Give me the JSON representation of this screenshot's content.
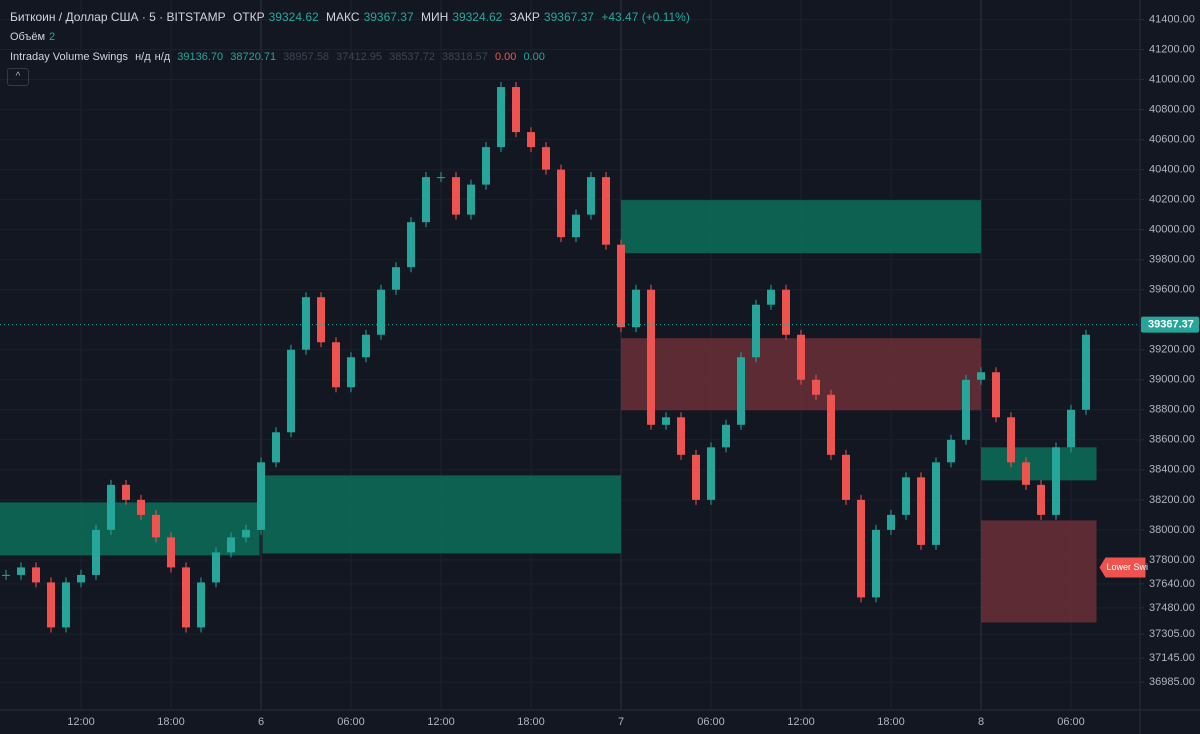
{
  "header": {
    "symbol": "Биткоин / Доллар США · 5 · BITSTAMP",
    "open_label": "ОТКР",
    "open": "39324.62",
    "high_label": "МАКС",
    "high": "39367.37",
    "low_label": "МИН",
    "low": "39324.62",
    "close_label": "ЗАКР",
    "close": "39367.37",
    "change": "+43.47 (+0.11%)",
    "volume_label": "Объём",
    "volume": "2",
    "indicator": "Intraday Volume Swings",
    "ind_na1": "н/д",
    "ind_na2": "н/д",
    "ind_values": [
      "39136.70",
      "38720.71",
      "38957.58",
      "37412.95",
      "38537.72",
      "38318.57"
    ],
    "ind_red": "0.00",
    "ind_green": "0.00"
  },
  "chart": {
    "type": "candlestick",
    "xlim": [
      6.6,
      82.6
    ],
    "ylim": [
      36800,
      41530
    ],
    "yticks": [
      {
        "value": 41400,
        "label": "41400.00"
      },
      {
        "value": 41200,
        "label": "41200.00"
      },
      {
        "value": 41000,
        "label": "41000.00"
      },
      {
        "value": 40800,
        "label": "40800.00"
      },
      {
        "value": 40600,
        "label": "40600.00"
      },
      {
        "value": 40400,
        "label": "40400.00"
      },
      {
        "value": 40200,
        "label": "40200.00"
      },
      {
        "value": 40000,
        "label": "40000.00"
      },
      {
        "value": 39800,
        "label": "39800.00"
      },
      {
        "value": 39600,
        "label": "39600.00"
      },
      {
        "value": 39200,
        "label": "39200.00"
      },
      {
        "value": 39000,
        "label": "39000.00"
      },
      {
        "value": 38800,
        "label": "38800.00"
      },
      {
        "value": 38600,
        "label": "38600.00"
      },
      {
        "value": 38400,
        "label": "38400.00"
      },
      {
        "value": 38200,
        "label": "38200.00"
      },
      {
        "value": 38000,
        "label": "38000.00"
      },
      {
        "value": 37800,
        "label": "37800.00"
      },
      {
        "value": 37640,
        "label": "37640.00"
      },
      {
        "value": 37480,
        "label": "37480.00"
      },
      {
        "value": 37305,
        "label": "37305.00"
      },
      {
        "value": 37145,
        "label": "37145.00"
      },
      {
        "value": 36985,
        "label": "36985.00"
      }
    ],
    "xticks": [
      {
        "value": 12,
        "label": "12:00"
      },
      {
        "value": 18,
        "label": "18:00"
      },
      {
        "value": 24,
        "label": "6"
      },
      {
        "value": 30,
        "label": "06:00"
      },
      {
        "value": 36,
        "label": "12:00"
      },
      {
        "value": 42,
        "label": "18:00"
      },
      {
        "value": 48,
        "label": "7"
      },
      {
        "value": 54,
        "label": "06:00"
      },
      {
        "value": 60,
        "label": "12:00"
      },
      {
        "value": 66,
        "label": "18:00"
      },
      {
        "value": 72,
        "label": "8"
      },
      {
        "value": 78,
        "label": "06:00"
      }
    ],
    "x": [
      7,
      8,
      9,
      10,
      11,
      12,
      13,
      14,
      15,
      16,
      17,
      18,
      19,
      20,
      21,
      22,
      23,
      24,
      25,
      26,
      27,
      28,
      29,
      30,
      31,
      32,
      33,
      34,
      35,
      36,
      37,
      38,
      39,
      40,
      41,
      42,
      43,
      44,
      45,
      46,
      47,
      48,
      49,
      50,
      51,
      52,
      53,
      54,
      55,
      56,
      57,
      58,
      59,
      60,
      61,
      62,
      63,
      64,
      65,
      66,
      67,
      68,
      69,
      70,
      71,
      72,
      73,
      74,
      75,
      76,
      77,
      78,
      79
    ],
    "close": [
      37700,
      37750,
      37650,
      37350,
      37650,
      37700,
      38000,
      38300,
      38200,
      38100,
      37950,
      37750,
      37350,
      37650,
      37850,
      37950,
      38000,
      38450,
      38650,
      39200,
      39550,
      39250,
      38950,
      39150,
      39300,
      39600,
      39750,
      40050,
      40350,
      40350,
      40100,
      40300,
      40550,
      40950,
      40650,
      40550,
      40400,
      39950,
      40100,
      40350,
      39900,
      39350,
      39600,
      38700,
      38750,
      38500,
      38200,
      38550,
      38700,
      39150,
      39500,
      39600,
      39300,
      39000,
      38900,
      38500,
      38200,
      37550,
      38000,
      38100,
      38350,
      37900,
      38450,
      38600,
      39000,
      39050,
      38750,
      38450,
      38300,
      38100,
      38550,
      38800,
      39300
    ],
    "up_color": "#26a69a",
    "down_color": "#ef5350",
    "last_price": {
      "value": 39367.37,
      "label": "39367.37"
    },
    "zones": [
      {
        "from": 6.6,
        "to": 23.9,
        "top": 38183,
        "bottom": 37830,
        "color": "#0c6e58"
      },
      {
        "from": 24.1,
        "to": 48,
        "top": 38363,
        "bottom": 37843,
        "color": "#0c6e58"
      },
      {
        "from": 48,
        "to": 72,
        "top": 40197,
        "bottom": 39843,
        "color": "#0c6e58"
      },
      {
        "from": 48,
        "to": 72,
        "top": 39277,
        "bottom": 38797,
        "color": "#6a2f36"
      },
      {
        "from": 72,
        "to": 79.7,
        "top": 38550,
        "bottom": 38330,
        "color": "#0c6e58"
      },
      {
        "from": 72,
        "to": 79.7,
        "top": 38063,
        "bottom": 37383,
        "color": "#6a2f36"
      }
    ],
    "annotation": "Lower Swi"
  }
}
